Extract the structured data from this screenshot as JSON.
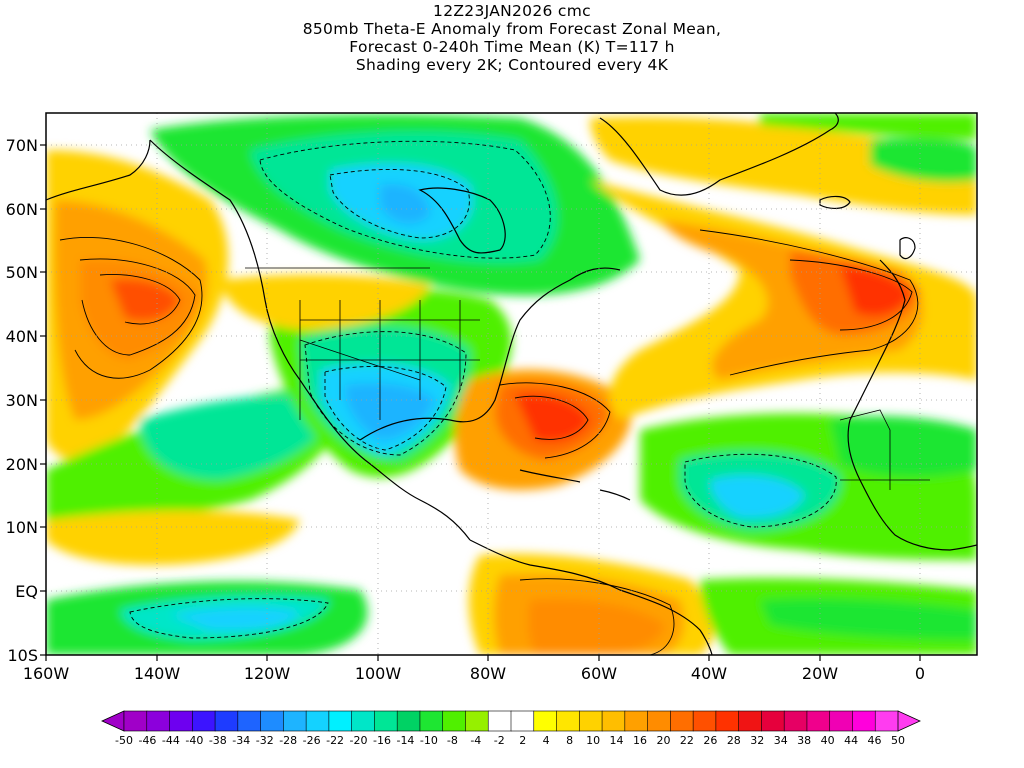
{
  "title": {
    "line1": "12Z23JAN2026 cmc",
    "line2": "850mb Theta-E Anomaly from Forecast Zonal Mean,",
    "line3": "Forecast 0-240h Time Mean (K) T=117 h",
    "line4": "Shading every 2K; Contoured every 4K"
  },
  "axes": {
    "lat_labels": [
      "70N",
      "60N",
      "50N",
      "40N",
      "30N",
      "20N",
      "10N",
      "EQ",
      "10S"
    ],
    "lon_labels": [
      "160W",
      "140W",
      "120W",
      "100W",
      "80W",
      "60W",
      "40W",
      "20W",
      "0"
    ]
  },
  "colorbar": {
    "labels": [
      "-50",
      "-46",
      "-44",
      "-40",
      "-38",
      "-34",
      "-32",
      "-28",
      "-26",
      "-22",
      "-20",
      "-16",
      "-14",
      "-10",
      "-8",
      "-4",
      "-2",
      "2",
      "4",
      "8",
      "10",
      "14",
      "16",
      "20",
      "22",
      "26",
      "28",
      "32",
      "34",
      "38",
      "40",
      "44",
      "46",
      "50"
    ],
    "colors": [
      "#a000c8",
      "#8c00dc",
      "#6e00f0",
      "#3c14ff",
      "#1e3cff",
      "#1e64ff",
      "#1e8cff",
      "#1eb4ff",
      "#14d2ff",
      "#00f0ff",
      "#00e6c8",
      "#00e696",
      "#00d264",
      "#1ee632",
      "#50f000",
      "#96f000",
      "#ffffff",
      "#ffffff",
      "#ffff00",
      "#ffe600",
      "#ffd200",
      "#ffbe00",
      "#ffa000",
      "#ff8c00",
      "#ff6e00",
      "#ff5000",
      "#ff3200",
      "#f01414",
      "#e6003c",
      "#e60064",
      "#f0008c",
      "#f000b4",
      "#ff00dc",
      "#ff3cf0"
    ]
  }
}
